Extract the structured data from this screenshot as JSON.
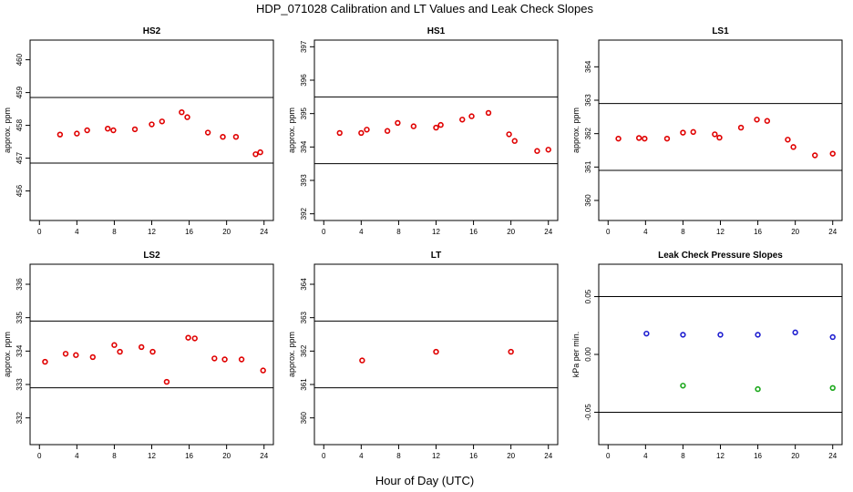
{
  "title": "HDP_071028  Calibration and LT Values and Leak Check Slopes",
  "xlabel": "Hour of Day (UTC)",
  "chart_data": [
    {
      "type": "scatter",
      "title": "HS2",
      "ylabel": "approx. ppm",
      "xlim": [
        -1,
        25
      ],
      "ylim": [
        455.1,
        460.6
      ],
      "xticks": [
        0,
        4,
        8,
        12,
        16,
        20,
        24
      ],
      "yticks": [
        456,
        457,
        458,
        459,
        460
      ],
      "hlines": [
        456.85,
        458.85
      ],
      "series": [
        {
          "color": "#e00000",
          "points": [
            [
              2.2,
              457.72
            ],
            [
              4,
              457.75
            ],
            [
              5.1,
              457.85
            ],
            [
              7.3,
              457.9
            ],
            [
              7.9,
              457.85
            ],
            [
              10.2,
              457.88
            ],
            [
              12,
              458.03
            ],
            [
              13.1,
              458.12
            ],
            [
              15.2,
              458.4
            ],
            [
              15.8,
              458.25
            ],
            [
              18,
              457.78
            ],
            [
              19.6,
              457.65
            ],
            [
              21,
              457.65
            ],
            [
              23.1,
              457.12
            ],
            [
              23.6,
              457.18
            ]
          ]
        }
      ]
    },
    {
      "type": "scatter",
      "title": "HS1",
      "ylabel": "approx. ppm",
      "xlim": [
        -1,
        25
      ],
      "ylim": [
        391.8,
        397.2
      ],
      "xticks": [
        0,
        4,
        8,
        12,
        16,
        20,
        24
      ],
      "yticks": [
        392,
        393,
        394,
        395,
        396,
        397
      ],
      "hlines": [
        393.5,
        395.5
      ],
      "series": [
        {
          "color": "#e00000",
          "points": [
            [
              1.7,
              394.42
            ],
            [
              4,
              394.42
            ],
            [
              4.6,
              394.52
            ],
            [
              6.8,
              394.48
            ],
            [
              7.9,
              394.72
            ],
            [
              9.6,
              394.62
            ],
            [
              12,
              394.58
            ],
            [
              12.5,
              394.66
            ],
            [
              14.8,
              394.82
            ],
            [
              15.8,
              394.92
            ],
            [
              17.6,
              395.02
            ],
            [
              19.8,
              394.38
            ],
            [
              20.4,
              394.18
            ],
            [
              22.8,
              393.88
            ],
            [
              24,
              393.92
            ]
          ]
        }
      ]
    },
    {
      "type": "scatter",
      "title": "LS1",
      "ylabel": "approx. ppm",
      "xlim": [
        -1,
        25
      ],
      "ylim": [
        359.4,
        364.8
      ],
      "xticks": [
        0,
        4,
        8,
        12,
        16,
        20,
        24
      ],
      "yticks": [
        360,
        361,
        362,
        363,
        364
      ],
      "hlines": [
        360.9,
        362.9
      ],
      "series": [
        {
          "color": "#e00000",
          "points": [
            [
              1.1,
              361.85
            ],
            [
              3.3,
              361.87
            ],
            [
              3.9,
              361.85
            ],
            [
              6.3,
              361.85
            ],
            [
              8,
              362.03
            ],
            [
              9.1,
              362.05
            ],
            [
              11.4,
              361.98
            ],
            [
              11.9,
              361.88
            ],
            [
              14.2,
              362.18
            ],
            [
              15.9,
              362.42
            ],
            [
              17,
              362.38
            ],
            [
              19.2,
              361.82
            ],
            [
              19.8,
              361.6
            ],
            [
              22.1,
              361.35
            ],
            [
              24,
              361.4
            ]
          ]
        }
      ]
    },
    {
      "type": "scatter",
      "title": "LS2",
      "ylabel": "approx. ppm",
      "xlim": [
        -1,
        25
      ],
      "ylim": [
        331.2,
        336.6
      ],
      "xticks": [
        0,
        4,
        8,
        12,
        16,
        20,
        24
      ],
      "yticks": [
        332,
        333,
        334,
        335,
        336
      ],
      "hlines": [
        332.9,
        334.9
      ],
      "series": [
        {
          "color": "#e00000",
          "points": [
            [
              0.6,
              333.68
            ],
            [
              2.8,
              333.92
            ],
            [
              3.9,
              333.88
            ],
            [
              5.7,
              333.82
            ],
            [
              8,
              334.18
            ],
            [
              8.6,
              333.98
            ],
            [
              10.9,
              334.12
            ],
            [
              12.1,
              333.98
            ],
            [
              13.6,
              333.08
            ],
            [
              15.9,
              334.4
            ],
            [
              16.6,
              334.38
            ],
            [
              18.7,
              333.78
            ],
            [
              19.8,
              333.75
            ],
            [
              21.6,
              333.75
            ],
            [
              23.9,
              333.42
            ]
          ]
        }
      ]
    },
    {
      "type": "scatter",
      "title": "LT",
      "ylabel": "approx. ppm",
      "xlim": [
        -1,
        25
      ],
      "ylim": [
        359.2,
        364.6
      ],
      "xticks": [
        0,
        4,
        8,
        12,
        16,
        20,
        24
      ],
      "yticks": [
        360,
        361,
        362,
        363,
        364
      ],
      "hlines": [
        360.9,
        362.9
      ],
      "series": [
        {
          "color": "#e00000",
          "points": [
            [
              4.1,
              361.72
            ],
            [
              12,
              361.98
            ],
            [
              20,
              361.98
            ]
          ]
        }
      ]
    },
    {
      "type": "scatter",
      "title": "Leak Check Pressure Slopes",
      "ylabel": "kPa per min.",
      "xlim": [
        -1,
        25
      ],
      "ylim": [
        -0.078,
        0.078
      ],
      "xticks": [
        0,
        4,
        8,
        12,
        16,
        20,
        24
      ],
      "yticks": [
        -0.05,
        0.0,
        0.05
      ],
      "ytick_labels": [
        "-0.05",
        "0.00",
        "0.05"
      ],
      "hlines": [
        -0.05,
        0.05
      ],
      "series": [
        {
          "color": "#1f1fd0",
          "points": [
            [
              4.1,
              0.018
            ],
            [
              8,
              0.017
            ],
            [
              12,
              0.017
            ],
            [
              16,
              0.017
            ],
            [
              20,
              0.019
            ],
            [
              24,
              0.015
            ]
          ]
        },
        {
          "color": "#1ca81c",
          "points": [
            [
              8,
              -0.027
            ],
            [
              16,
              -0.03
            ],
            [
              24,
              -0.029
            ]
          ]
        }
      ]
    }
  ]
}
